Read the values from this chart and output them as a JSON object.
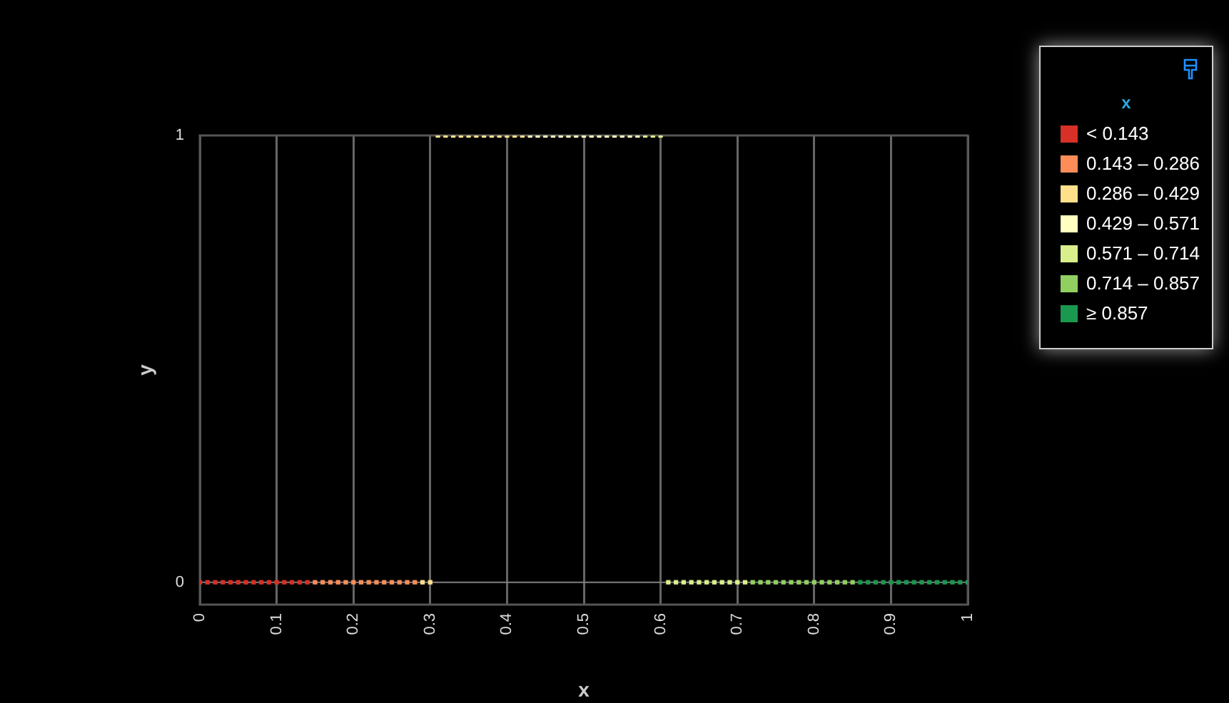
{
  "chart_data": {
    "type": "scatter",
    "xlabel": "x",
    "ylabel": "y",
    "legend_title": "x",
    "legend": "top right",
    "grid": "x",
    "marker": "square",
    "xlim": [
      0,
      1
    ],
    "xticks": [
      0,
      0.1,
      0.2,
      0.3,
      0.4,
      0.5,
      0.6,
      0.7,
      0.8,
      0.9,
      1
    ],
    "ylim": [
      -0.05,
      1
    ],
    "yticks": [
      0,
      1
    ],
    "ref_lines": [
      {
        "axis": "y",
        "value": 0,
        "color": "#808080"
      }
    ],
    "series": [
      {
        "name": "< 0.143",
        "color": "#d73027",
        "x": [
          0,
          0.01,
          0.02,
          0.03,
          0.04,
          0.05,
          0.06,
          0.07,
          0.08,
          0.09,
          0.1,
          0.11,
          0.12,
          0.13,
          0.14
        ],
        "values": [
          0,
          0,
          0,
          0,
          0,
          0,
          0,
          0,
          0,
          0,
          0,
          0,
          0,
          0,
          0
        ]
      },
      {
        "name": "0.143 – 0.286",
        "color": "#fc8d59",
        "x": [
          0.15,
          0.16,
          0.17,
          0.18,
          0.19,
          0.2,
          0.21,
          0.22,
          0.23,
          0.24,
          0.25,
          0.26,
          0.27,
          0.28
        ],
        "values": [
          0,
          0,
          0,
          0,
          0,
          0,
          0,
          0,
          0,
          0,
          0,
          0,
          0,
          0
        ]
      },
      {
        "name": "0.286 – 0.429",
        "color": "#fee08b",
        "x": [
          0.29,
          0.3,
          0.31,
          0.32,
          0.33,
          0.34,
          0.35,
          0.36,
          0.37,
          0.38,
          0.39,
          0.4,
          0.41,
          0.42
        ],
        "values": [
          0,
          0,
          1,
          1,
          1,
          1,
          1,
          1,
          1,
          1,
          1,
          1,
          1,
          1
        ]
      },
      {
        "name": "0.429 – 0.571",
        "color": "#ffffbf",
        "x": [
          0.43,
          0.44,
          0.45,
          0.46,
          0.47,
          0.48,
          0.49,
          0.5,
          0.51,
          0.52,
          0.53,
          0.54,
          0.55,
          0.56,
          0.57
        ],
        "values": [
          1,
          1,
          1,
          1,
          1,
          1,
          1,
          1,
          1,
          1,
          1,
          1,
          1,
          1,
          1
        ]
      },
      {
        "name": "0.571 – 0.714",
        "color": "#d9ef8b",
        "x": [
          0.58,
          0.59,
          0.6,
          0.61,
          0.62,
          0.63,
          0.64,
          0.65,
          0.66,
          0.67,
          0.68,
          0.69,
          0.7,
          0.71
        ],
        "values": [
          1,
          1,
          1,
          0,
          0,
          0,
          0,
          0,
          0,
          0,
          0,
          0,
          0,
          0
        ]
      },
      {
        "name": "0.714 – 0.857",
        "color": "#91cf60",
        "x": [
          0.72,
          0.73,
          0.74,
          0.75,
          0.76,
          0.77,
          0.78,
          0.79,
          0.8,
          0.81,
          0.82,
          0.83,
          0.84,
          0.85
        ],
        "values": [
          0,
          0,
          0,
          0,
          0,
          0,
          0,
          0,
          0,
          0,
          0,
          0,
          0,
          0
        ]
      },
      {
        "name": "≥ 0.857",
        "color": "#1a9850",
        "x": [
          0.86,
          0.87,
          0.88,
          0.89,
          0.9,
          0.91,
          0.92,
          0.93,
          0.94,
          0.95,
          0.96,
          0.97,
          0.98,
          0.99,
          1
        ],
        "values": [
          0,
          0,
          0,
          0,
          0,
          0,
          0,
          0,
          0,
          0,
          0,
          0,
          0,
          0,
          0
        ]
      }
    ]
  }
}
